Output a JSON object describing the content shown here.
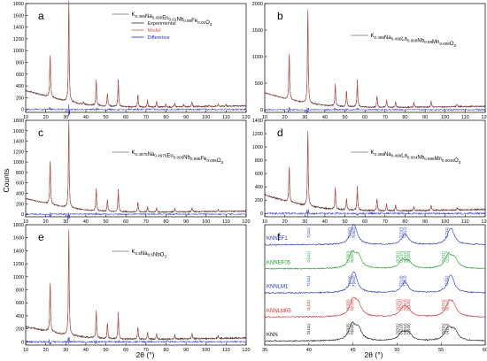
{
  "figure": {
    "ylabel": "Counts",
    "xlabel": "2θ (°)",
    "colors": {
      "experimental": "#222222",
      "model": "#e05050",
      "difference": "#2222cc",
      "knnef1": "#1f2fb5",
      "knnef05": "#1a9a2a",
      "knnlm1": "#1f2fb5",
      "knnlm05": "#cc2a2a",
      "knn": "#111111"
    }
  },
  "chart_data": [
    {
      "type": "line",
      "panel": "a",
      "formula": [
        "K",
        {
          "sub": "0.495"
        },
        "Na",
        {
          "sub": "0.495"
        },
        "Eu",
        {
          "sub": "0.01"
        },
        "Nb",
        {
          "sub": "0.99"
        },
        "Fe",
        {
          "sub": "0.01"
        },
        "O",
        {
          "sub": "3"
        }
      ],
      "legend": [
        "Experimental",
        "Model",
        "Difference"
      ],
      "xlim": [
        10,
        120
      ],
      "ylim": [
        -50,
        1800
      ],
      "xticks": [
        10,
        20,
        30,
        40,
        50,
        60,
        70,
        80,
        90,
        100,
        110,
        120
      ],
      "yticks": [
        0,
        200,
        400,
        600,
        800,
        1000,
        1200,
        1400,
        1600,
        1800
      ],
      "background": [
        [
          10,
          320
        ],
        [
          20,
          230
        ],
        [
          30,
          140
        ],
        [
          40,
          80
        ],
        [
          50,
          55
        ],
        [
          60,
          45
        ],
        [
          70,
          40
        ],
        [
          80,
          40
        ],
        [
          90,
          45
        ],
        [
          100,
          50
        ],
        [
          110,
          55
        ],
        [
          120,
          60
        ]
      ],
      "peaks": [
        [
          22.2,
          760
        ],
        [
          31.5,
          1750
        ],
        [
          38.8,
          45
        ],
        [
          45.2,
          430
        ],
        [
          50.8,
          230
        ],
        [
          56.2,
          460
        ],
        [
          66.0,
          220
        ],
        [
          70.8,
          120
        ],
        [
          75.3,
          95
        ],
        [
          79.9,
          45
        ],
        [
          84.4,
          70
        ],
        [
          88.8,
          40
        ],
        [
          93.0,
          90
        ],
        [
          101.5,
          30
        ],
        [
          106.0,
          40
        ],
        [
          110.0,
          35
        ]
      ]
    },
    {
      "type": "line",
      "panel": "b",
      "formula": [
        "K",
        {
          "sub": "0.496"
        },
        "Na",
        {
          "sub": "0.496"
        },
        "La",
        {
          "sub": "0.008"
        },
        "Nb",
        {
          "sub": "0.99"
        },
        "Mn",
        {
          "sub": "0.009"
        },
        "O",
        {
          "sub": "3"
        }
      ],
      "xlim": [
        10,
        120
      ],
      "ylim": [
        -50,
        2000
      ],
      "xticks": [
        10,
        20,
        30,
        40,
        50,
        60,
        70,
        80,
        90,
        100,
        110,
        120
      ],
      "yticks": [
        0,
        500,
        1000,
        1500,
        2000
      ],
      "background": [
        [
          10,
          320
        ],
        [
          20,
          210
        ],
        [
          30,
          130
        ],
        [
          40,
          80
        ],
        [
          50,
          60
        ],
        [
          60,
          50
        ],
        [
          70,
          45
        ],
        [
          80,
          45
        ],
        [
          90,
          50
        ],
        [
          100,
          55
        ],
        [
          110,
          60
        ],
        [
          120,
          65
        ]
      ],
      "peaks": [
        [
          22.2,
          920
        ],
        [
          31.5,
          1800
        ],
        [
          45.2,
          420
        ],
        [
          50.8,
          300
        ],
        [
          56.2,
          520
        ],
        [
          66.0,
          220
        ],
        [
          70.8,
          140
        ],
        [
          75.3,
          110
        ],
        [
          84.4,
          90
        ],
        [
          93.0,
          110
        ],
        [
          106.0,
          50
        ]
      ]
    },
    {
      "type": "line",
      "panel": "c",
      "formula": [
        "K",
        {
          "sub": "0.4975"
        },
        "Na",
        {
          "sub": "0.4975"
        },
        "Eu",
        {
          "sub": "0.005"
        },
        "Nb",
        {
          "sub": "0.995"
        },
        "Fe",
        {
          "sub": "0.005"
        },
        "O",
        {
          "sub": "3"
        }
      ],
      "xlim": [
        10,
        120
      ],
      "ylim": [
        -50,
        1800
      ],
      "xticks": [
        10,
        20,
        30,
        40,
        50,
        60,
        70,
        80,
        90,
        100,
        110,
        120
      ],
      "yticks": [
        0,
        200,
        400,
        600,
        800,
        1000,
        1200,
        1400,
        1600,
        1800
      ],
      "background": [
        [
          10,
          300
        ],
        [
          20,
          210
        ],
        [
          30,
          130
        ],
        [
          40,
          80
        ],
        [
          50,
          55
        ],
        [
          60,
          45
        ],
        [
          70,
          40
        ],
        [
          80,
          40
        ],
        [
          90,
          45
        ],
        [
          100,
          50
        ],
        [
          110,
          55
        ],
        [
          120,
          60
        ]
      ],
      "peaks": [
        [
          22.2,
          880
        ],
        [
          31.5,
          1700
        ],
        [
          45.2,
          420
        ],
        [
          50.8,
          230
        ],
        [
          56.2,
          430
        ],
        [
          66.0,
          200
        ],
        [
          70.8,
          110
        ],
        [
          75.3,
          90
        ],
        [
          84.4,
          70
        ],
        [
          93.0,
          80
        ],
        [
          106.0,
          35
        ]
      ]
    },
    {
      "type": "line",
      "panel": "d",
      "formula": [
        "K",
        {
          "sub": "0.498"
        },
        "Na",
        {
          "sub": "0.498"
        },
        "La",
        {
          "sub": "0.004"
        },
        "Nb",
        {
          "sub": "0.995"
        },
        "Mn",
        {
          "sub": "0.0045"
        },
        "O",
        {
          "sub": "3"
        }
      ],
      "xlim": [
        10,
        120
      ],
      "ylim": [
        -50,
        1400
      ],
      "xticks": [
        10,
        20,
        30,
        40,
        50,
        60,
        70,
        80,
        90,
        100,
        110,
        120
      ],
      "yticks": [
        0,
        200,
        400,
        600,
        800,
        1000,
        1200,
        1400
      ],
      "background": [
        [
          10,
          280
        ],
        [
          20,
          190
        ],
        [
          30,
          120
        ],
        [
          40,
          75
        ],
        [
          50,
          55
        ],
        [
          60,
          45
        ],
        [
          70,
          40
        ],
        [
          80,
          40
        ],
        [
          90,
          45
        ],
        [
          100,
          50
        ],
        [
          110,
          55
        ],
        [
          120,
          60
        ]
      ],
      "peaks": [
        [
          22.2,
          560
        ],
        [
          31.5,
          1150
        ],
        [
          45.2,
          330
        ],
        [
          50.8,
          180
        ],
        [
          56.2,
          360
        ],
        [
          66.0,
          190
        ],
        [
          70.8,
          110
        ],
        [
          75.3,
          90
        ],
        [
          84.4,
          70
        ],
        [
          93.0,
          80
        ],
        [
          106.0,
          40
        ]
      ]
    },
    {
      "type": "line",
      "panel": "e",
      "formula": [
        "K",
        {
          "sub": "0.5"
        },
        "Na",
        {
          "sub": "0.5"
        },
        "NbO",
        {
          "sub": "3"
        }
      ],
      "xlim": [
        10,
        120
      ],
      "ylim": [
        -50,
        1800
      ],
      "xticks": [
        10,
        20,
        30,
        40,
        50,
        60,
        70,
        80,
        90,
        100,
        110,
        120
      ],
      "yticks": [
        0,
        200,
        400,
        600,
        800,
        1000,
        1200,
        1400,
        1600,
        1800
      ],
      "background": [
        [
          10,
          230
        ],
        [
          20,
          170
        ],
        [
          30,
          110
        ],
        [
          40,
          70
        ],
        [
          50,
          50
        ],
        [
          60,
          45
        ],
        [
          70,
          40
        ],
        [
          80,
          40
        ],
        [
          90,
          45
        ],
        [
          100,
          50
        ],
        [
          110,
          55
        ],
        [
          120,
          60
        ]
      ],
      "peaks": [
        [
          22.2,
          800
        ],
        [
          31.5,
          1650
        ],
        [
          45.2,
          420
        ],
        [
          50.8,
          250
        ],
        [
          56.2,
          400
        ],
        [
          66.0,
          190
        ],
        [
          70.8,
          110
        ],
        [
          75.3,
          90
        ],
        [
          84.4,
          70
        ],
        [
          93.0,
          90
        ],
        [
          106.0,
          40
        ]
      ]
    },
    {
      "type": "line",
      "panel": "f",
      "xlim": [
        35,
        60
      ],
      "xticks": [
        35,
        40,
        45,
        50,
        55,
        60
      ],
      "series": [
        {
          "name": "KNN",
          "color": "#111111",
          "peaks": [
            [
              44.9,
              0.6
            ],
            [
              45.6,
              0.45
            ],
            [
              50.6,
              0.32
            ],
            [
              51.3,
              0.28
            ],
            [
              55.8,
              0.48
            ],
            [
              56.5,
              0.38
            ]
          ],
          "hkl": [
            "O(111)",
            "O(200)",
            "O(020)",
            "O(201)",
            "O(210)",
            "O(012)",
            "O(120)",
            "O(211)",
            "O(112)"
          ]
        },
        {
          "name": "KNNLM05",
          "color": "#cc2a2a",
          "peaks": [
            [
              45.0,
              0.62
            ],
            [
              45.6,
              0.42
            ],
            [
              50.7,
              0.3
            ],
            [
              51.2,
              0.26
            ],
            [
              55.9,
              0.5
            ],
            [
              56.4,
              0.36
            ]
          ],
          "hkl": [
            "O(111)",
            "O(200)",
            "O(020)",
            "O(201)",
            "O(210)",
            "O(012)",
            "O(120)",
            "O(211)",
            "O(112)"
          ]
        },
        {
          "name": "KNNLM1",
          "color": "#1f2fb5",
          "peaks": [
            [
              45.1,
              0.85
            ],
            [
              50.9,
              0.45
            ],
            [
              56.1,
              0.7
            ]
          ],
          "hkl": [
            "T(111)",
            "T(200)",
            "T(002)",
            "T(210)",
            "T(012)",
            "T(211)"
          ]
        },
        {
          "name": "KNNEF05",
          "color": "#1a9a2a",
          "peaks": [
            [
              44.9,
              0.6
            ],
            [
              45.6,
              0.44
            ],
            [
              50.6,
              0.3
            ],
            [
              51.3,
              0.26
            ],
            [
              55.8,
              0.5
            ],
            [
              56.5,
              0.36
            ]
          ],
          "hkl": [
            "O(111)",
            "O(200)",
            "O(020)",
            "O(201)",
            "O(210)",
            "O(012)",
            "O(120)",
            "O(211)",
            "O(112)"
          ]
        },
        {
          "name": "KNNEF1",
          "color": "#1f2fb5",
          "peaks": [
            [
              45.1,
              0.8
            ],
            [
              50.9,
              0.42
            ],
            [
              56.1,
              0.66
            ]
          ],
          "hkl": [
            "T(111)",
            "T(200)",
            "T(002)",
            "T(210)",
            "T(012)",
            "T(211)"
          ]
        }
      ]
    }
  ]
}
